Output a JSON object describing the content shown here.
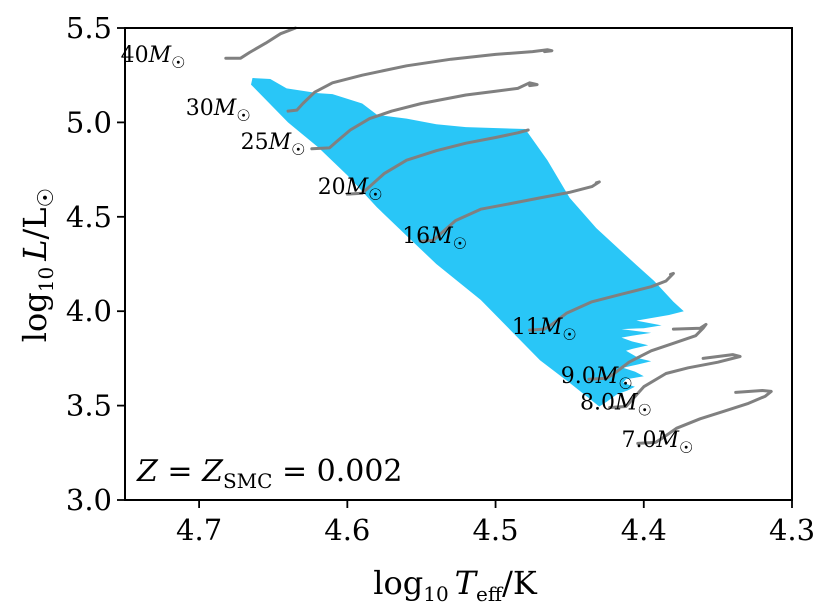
{
  "chart_data": {
    "type": "line",
    "title": "",
    "xlabel": "log10 Teff/K",
    "ylabel": "log10 L/L☉",
    "xlim": [
      4.75,
      4.3
    ],
    "ylim": [
      3.0,
      5.5
    ],
    "x_inverted": true,
    "xticks": [
      4.7,
      4.6,
      4.5,
      4.4,
      4.3
    ],
    "yticks": [
      3.0,
      3.5,
      4.0,
      4.5,
      5.0,
      5.5
    ],
    "xtick_labels": [
      "4.7",
      "4.6",
      "4.5",
      "4.4",
      "4.3"
    ],
    "ytick_labels": [
      "3.0",
      "3.5",
      "4.0",
      "4.5",
      "5.0",
      "5.5"
    ],
    "xlabel_parts": {
      "prefix": "log",
      "sub": "10",
      "var": "T",
      "var_sub": "eff",
      "suffix": "/K"
    },
    "ylabel_parts": {
      "prefix": "log",
      "sub": "10",
      "var": "L",
      "suffix": "/L",
      "sym": "☉"
    },
    "annotation": {
      "var": "Z",
      "eq": " = ",
      "var2": "Z",
      "var2_sub": "SMC",
      "value": " = 0.002"
    },
    "grid": false,
    "region": {
      "name": "computed model region",
      "color": "#29c6f7",
      "boundary": [
        [
          4.664,
          5.235
        ],
        [
          4.652,
          5.23
        ],
        [
          4.641,
          5.18
        ],
        [
          4.62,
          5.155
        ],
        [
          4.61,
          5.15
        ],
        [
          4.59,
          5.1
        ],
        [
          4.58,
          5.04
        ],
        [
          4.56,
          5.02
        ],
        [
          4.54,
          4.99
        ],
        [
          4.52,
          4.975
        ],
        [
          4.48,
          4.965
        ],
        [
          4.465,
          4.8
        ],
        [
          4.45,
          4.6
        ],
        [
          4.432,
          4.44
        ],
        [
          4.41,
          4.28
        ],
        [
          4.393,
          4.16
        ],
        [
          4.38,
          4.05
        ],
        [
          4.373,
          4.0
        ],
        [
          4.383,
          3.98
        ],
        [
          4.405,
          3.95
        ],
        [
          4.388,
          3.925
        ],
        [
          4.4,
          3.91
        ],
        [
          4.415,
          3.905
        ],
        [
          4.395,
          3.885
        ],
        [
          4.408,
          3.87
        ],
        [
          4.415,
          3.86
        ],
        [
          4.408,
          3.84
        ],
        [
          4.397,
          3.82
        ],
        [
          4.408,
          3.8
        ],
        [
          4.412,
          3.79
        ],
        [
          4.403,
          3.75
        ],
        [
          4.395,
          3.735
        ],
        [
          4.403,
          3.72
        ],
        [
          4.414,
          3.7
        ],
        [
          4.406,
          3.68
        ],
        [
          4.4,
          3.655
        ],
        [
          4.412,
          3.64
        ],
        [
          4.414,
          3.62
        ],
        [
          4.406,
          3.6
        ],
        [
          4.411,
          3.58
        ],
        [
          4.418,
          3.56
        ],
        [
          4.425,
          3.52
        ],
        [
          4.43,
          3.495
        ],
        [
          4.45,
          3.62
        ],
        [
          4.47,
          3.74
        ],
        [
          4.49,
          3.9
        ],
        [
          4.51,
          4.06
        ],
        [
          4.54,
          4.25
        ],
        [
          4.56,
          4.4
        ],
        [
          4.58,
          4.55
        ],
        [
          4.6,
          4.72
        ],
        [
          4.62,
          4.87
        ],
        [
          4.64,
          5.0
        ],
        [
          4.665,
          5.2
        ]
      ]
    },
    "series": [
      {
        "name": "40M☉",
        "label": "40M",
        "color": "#808080",
        "x": [
          4.682,
          4.672,
          4.666,
          4.655,
          4.645,
          4.635
        ],
        "y": [
          5.34,
          5.34,
          5.37,
          5.42,
          5.47,
          5.5
        ]
      },
      {
        "name": "30M☉",
        "label": "30M",
        "color": "#808080",
        "x": [
          4.64,
          4.634,
          4.63,
          4.622,
          4.61,
          4.59,
          4.56,
          4.53,
          4.5,
          4.475,
          4.465,
          4.462,
          4.467
        ],
        "y": [
          5.06,
          5.065,
          5.1,
          5.16,
          5.21,
          5.25,
          5.3,
          5.335,
          5.36,
          5.375,
          5.385,
          5.38,
          5.375
        ]
      },
      {
        "name": "25M☉",
        "label": "25M",
        "color": "#808080",
        "x": [
          4.624,
          4.612,
          4.607,
          4.598,
          4.585,
          4.57,
          4.55,
          4.52,
          4.5,
          4.485,
          4.477,
          4.472,
          4.477
        ],
        "y": [
          4.86,
          4.865,
          4.9,
          4.96,
          5.02,
          5.06,
          5.1,
          5.145,
          5.165,
          5.18,
          5.21,
          5.2,
          5.195
        ]
      },
      {
        "name": "20M☉",
        "label": "20M",
        "color": "#808080",
        "x": [
          4.6,
          4.59,
          4.585,
          4.575,
          4.56,
          4.54,
          4.52,
          4.5,
          4.485,
          4.478
        ],
        "y": [
          4.62,
          4.625,
          4.66,
          4.73,
          4.8,
          4.85,
          4.89,
          4.92,
          4.945,
          4.96
        ]
      },
      {
        "name": "16M☉",
        "label": "16M",
        "color": "#808080",
        "x": [
          4.551,
          4.542,
          4.537,
          4.527,
          4.51,
          4.49,
          4.47,
          4.45,
          4.435,
          4.43,
          4.432
        ],
        "y": [
          4.37,
          4.375,
          4.41,
          4.48,
          4.54,
          4.57,
          4.6,
          4.63,
          4.66,
          4.685,
          4.68
        ]
      },
      {
        "name": "11M☉",
        "label": "11M",
        "color": "#808080",
        "x": [
          4.477,
          4.467,
          4.462,
          4.452,
          4.435,
          4.415,
          4.395,
          4.385,
          4.38,
          4.382
        ],
        "y": [
          3.9,
          3.905,
          3.93,
          3.99,
          4.05,
          4.09,
          4.13,
          4.16,
          4.2,
          4.195
        ]
      },
      {
        "name": "9.0M☉",
        "label": "9.0M",
        "color": "#808080",
        "x": [
          4.437,
          4.425,
          4.42,
          4.41,
          4.395,
          4.38,
          4.365,
          4.36,
          4.358,
          4.362,
          4.38
        ],
        "y": [
          3.64,
          3.645,
          3.67,
          3.73,
          3.79,
          3.83,
          3.87,
          3.91,
          3.93,
          3.91,
          3.905
        ]
      },
      {
        "name": "8.0M☉",
        "label": "8.0M",
        "color": "#808080",
        "x": [
          4.423,
          4.412,
          4.408,
          4.4,
          4.385,
          4.37,
          4.35,
          4.335,
          4.34,
          4.36
        ],
        "y": [
          3.49,
          3.495,
          3.53,
          3.6,
          3.67,
          3.7,
          3.73,
          3.76,
          3.77,
          3.75
        ]
      },
      {
        "name": "7.0M☉",
        "label": "7.0M",
        "color": "#808080",
        "x": [
          4.404,
          4.392,
          4.387,
          4.378,
          4.362,
          4.346,
          4.33,
          4.318,
          4.314,
          4.32,
          4.338
        ],
        "y": [
          3.3,
          3.305,
          3.33,
          3.38,
          3.43,
          3.47,
          3.51,
          3.55,
          3.575,
          3.58,
          3.57
        ]
      }
    ],
    "track_labels": [
      {
        "label": "40M",
        "x": 4.753,
        "y": 5.32
      },
      {
        "label": "30M",
        "x": 4.709,
        "y": 5.04
      },
      {
        "label": "25M",
        "x": 4.672,
        "y": 4.86
      },
      {
        "label": "20M",
        "x": 4.62,
        "y": 4.62
      },
      {
        "label": "16M",
        "x": 4.563,
        "y": 4.36
      },
      {
        "label": "11M",
        "x": 4.489,
        "y": 3.88
      },
      {
        "label": "9.0M",
        "x": 4.456,
        "y": 3.62
      },
      {
        "label": "8.0M",
        "x": 4.443,
        "y": 3.48
      },
      {
        "label": "7.0M",
        "x": 4.415,
        "y": 3.28
      }
    ],
    "sun_symbol": "☉",
    "colors": {
      "region": "#29c6f7",
      "track": "#808080",
      "axis": "#000000"
    }
  }
}
